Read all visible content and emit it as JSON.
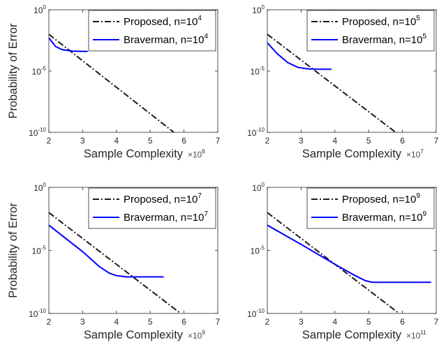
{
  "chart_data": [
    {
      "type": "line",
      "xlabel": "Sample Complexity",
      "ylabel": "Probability of Error",
      "x_multiplier": {
        "base": "×10",
        "exp": "6"
      },
      "xlim": [
        2,
        7
      ],
      "ylim_log10": [
        -10,
        0
      ],
      "x_ticks": [
        "2",
        "3",
        "4",
        "5",
        "6",
        "7"
      ],
      "y_ticks": [
        {
          "base": "10",
          "exp": "0"
        },
        {
          "base": "10",
          "exp": "-5"
        },
        {
          "base": "10",
          "exp": "-10"
        }
      ],
      "legend_position": "top-right",
      "grid": false,
      "series": [
        {
          "name": "Proposed, n=10",
          "name_sup": "4",
          "style": "dash-dot",
          "color": "#1a1a1a",
          "x": [
            2,
            5.7
          ],
          "y": [
            0.01,
            1e-10
          ]
        },
        {
          "name": "Braverman, n=10",
          "name_sup": "4",
          "style": "solid",
          "color": "#0000ff",
          "x": [
            2,
            2.2,
            2.4,
            2.7,
            3.0,
            3.15
          ],
          "y": [
            0.005,
            0.001,
            0.00055,
            0.00042,
            0.0004,
            0.0004
          ]
        }
      ]
    },
    {
      "type": "line",
      "xlabel": "Sample Complexity",
      "ylabel": "",
      "x_multiplier": {
        "base": "×10",
        "exp": "7"
      },
      "xlim": [
        2,
        7
      ],
      "ylim_log10": [
        -10,
        0
      ],
      "x_ticks": [
        "2",
        "3",
        "4",
        "5",
        "6",
        "7"
      ],
      "y_ticks": [
        {
          "base": "10",
          "exp": "0"
        },
        {
          "base": "10",
          "exp": "-5"
        },
        {
          "base": "10",
          "exp": "-10"
        }
      ],
      "legend_position": "top-right",
      "grid": false,
      "series": [
        {
          "name": "Proposed, n=10",
          "name_sup": "5",
          "style": "dash-dot",
          "color": "#1a1a1a",
          "x": [
            2,
            5.8
          ],
          "y": [
            0.01,
            1e-10
          ]
        },
        {
          "name": "Braverman, n=10",
          "name_sup": "5",
          "style": "solid",
          "color": "#0000ff",
          "x": [
            2,
            2.3,
            2.6,
            2.9,
            3.2,
            3.5,
            3.9
          ],
          "y": [
            0.002,
            0.00025,
            5e-05,
            2e-05,
            1.5e-05,
            1.4e-05,
            1.4e-05
          ]
        }
      ]
    },
    {
      "type": "line",
      "xlabel": "Sample Complexity",
      "ylabel": "Probability of Error",
      "x_multiplier": {
        "base": "×10",
        "exp": "9"
      },
      "xlim": [
        2,
        7
      ],
      "ylim_log10": [
        -10,
        0
      ],
      "x_ticks": [
        "2",
        "3",
        "4",
        "5",
        "6",
        "7"
      ],
      "y_ticks": [
        {
          "base": "10",
          "exp": "0"
        },
        {
          "base": "10",
          "exp": "-5"
        },
        {
          "base": "10",
          "exp": "-10"
        }
      ],
      "legend_position": "top-right",
      "grid": false,
      "series": [
        {
          "name": "Proposed, n=10",
          "name_sup": "7",
          "style": "dash-dot",
          "color": "#1a1a1a",
          "x": [
            2,
            5.9
          ],
          "y": [
            0.01,
            1e-10
          ]
        },
        {
          "name": "Braverman, n=10",
          "name_sup": "7",
          "style": "solid",
          "color": "#0000ff",
          "x": [
            2,
            3.0,
            3.5,
            3.8,
            4.0,
            4.3,
            5.4
          ],
          "y": [
            0.001,
            8e-06,
            5e-07,
            1.5e-07,
            1e-07,
            8e-08,
            8e-08
          ]
        }
      ]
    },
    {
      "type": "line",
      "xlabel": "Sample Complexity",
      "ylabel": "",
      "x_multiplier": {
        "base": "×10",
        "exp": "11"
      },
      "xlim": [
        2,
        7
      ],
      "ylim_log10": [
        -10,
        0
      ],
      "x_ticks": [
        "2",
        "3",
        "4",
        "5",
        "6",
        "7"
      ],
      "y_ticks": [
        {
          "base": "10",
          "exp": "0"
        },
        {
          "base": "10",
          "exp": "-5"
        },
        {
          "base": "10",
          "exp": "-10"
        }
      ],
      "legend_position": "top-right",
      "grid": false,
      "series": [
        {
          "name": "Proposed, n=10",
          "name_sup": "9",
          "style": "dash-dot",
          "color": "#1a1a1a",
          "x": [
            2,
            5.9
          ],
          "y": [
            0.01,
            1e-10
          ]
        },
        {
          "name": "Braverman, n=10",
          "name_sup": "9",
          "style": "solid",
          "color": "#0000ff",
          "x": [
            2,
            3.0,
            4.0,
            4.6,
            4.9,
            5.1,
            5.5,
            6.85
          ],
          "y": [
            0.001,
            3e-05,
            8e-07,
            1e-07,
            4e-08,
            3e-08,
            3e-08,
            3e-08
          ]
        }
      ]
    }
  ]
}
